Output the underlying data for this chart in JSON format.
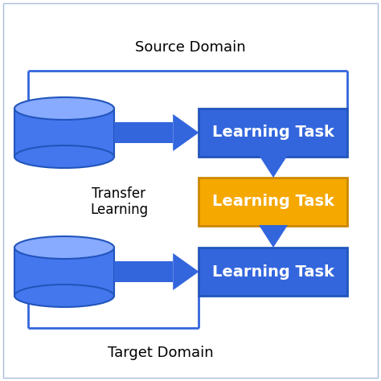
{
  "fig_size": [
    4.74,
    4.74
  ],
  "dpi": 100,
  "bg_color": "#ffffff",
  "outer_border_color": "#aabbdd",
  "blue_color": "#3366dd",
  "blue_box_color": "#3366dd",
  "orange_box_color": "#f5a800",
  "cylinder_body_color": "#4477ee",
  "cylinder_top_color": "#88aaff",
  "arrow_color": "#3366dd",
  "box_text_color": "#ffffff",
  "label_text_color": "#000000",
  "bracket_color": "#3366dd",
  "source_domain_text": "Source Domain",
  "target_domain_text": "Target Domain",
  "transfer_learning_text": "Transfer\nLearning",
  "learning_task_texts": [
    "Learning Task",
    "Learning Task",
    "Learning Task"
  ]
}
